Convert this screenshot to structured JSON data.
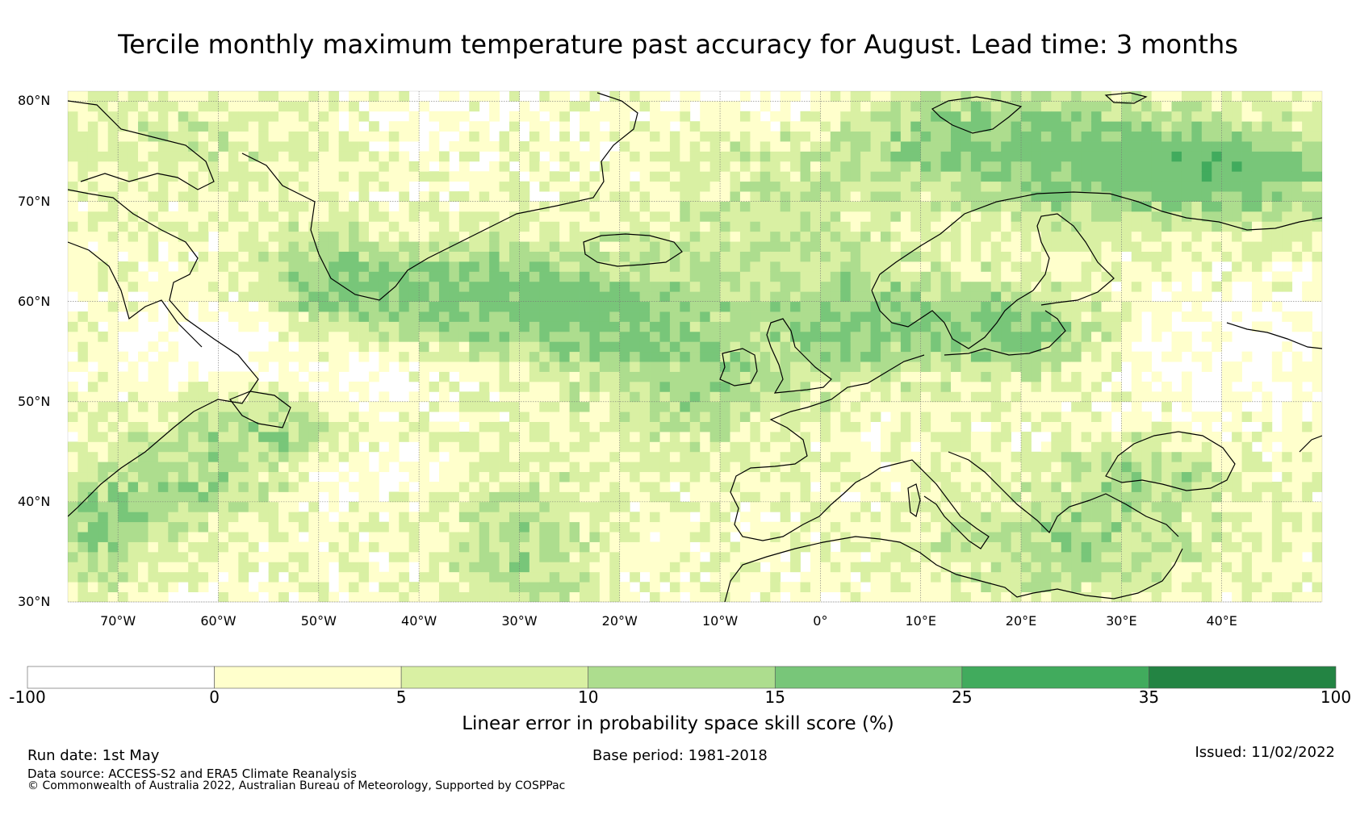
{
  "title": "Tercile monthly maximum temperature past accuracy for August. Lead time: 3 months",
  "map": {
    "lat_labels": [
      "80°N",
      "70°N",
      "60°N",
      "50°N",
      "40°N",
      "30°N"
    ],
    "lon_labels": [
      "70°W",
      "60°W",
      "50°W",
      "40°W",
      "30°W",
      "20°W",
      "10°W",
      "0°",
      "10°E",
      "20°E",
      "30°E",
      "40°E"
    ],
    "extent": {
      "lon_min": -75,
      "lon_max": 50,
      "lat_min": 30,
      "lat_max": 81
    }
  },
  "colorbar": {
    "title": "Linear error in probability space skill score (%)",
    "tick_labels": [
      "-100",
      "0",
      "5",
      "10",
      "15",
      "25",
      "35",
      "100"
    ],
    "bins": [
      {
        "range": "-100 to 0",
        "color": "#ffffff"
      },
      {
        "range": "0 to 5",
        "color": "#ffffcc"
      },
      {
        "range": "5 to 10",
        "color": "#d9f0a3"
      },
      {
        "range": "10 to 15",
        "color": "#addd8e"
      },
      {
        "range": "15 to 25",
        "color": "#78c679"
      },
      {
        "range": "25 to 35",
        "color": "#41ab5d"
      },
      {
        "range": "35 to 100",
        "color": "#238443"
      }
    ]
  },
  "footer": {
    "run_date": "Run date: 1st May",
    "base_period": "Base period: 1981-2018",
    "issued": "Issued: 11/02/2022",
    "data_source": "Data source: ACCESS-S2 and ERA5 Climate Reanalysis",
    "copyright": "© Commonwealth of Australia 2022, Australian Bureau of Meteorology, Supported by COSPPac"
  }
}
